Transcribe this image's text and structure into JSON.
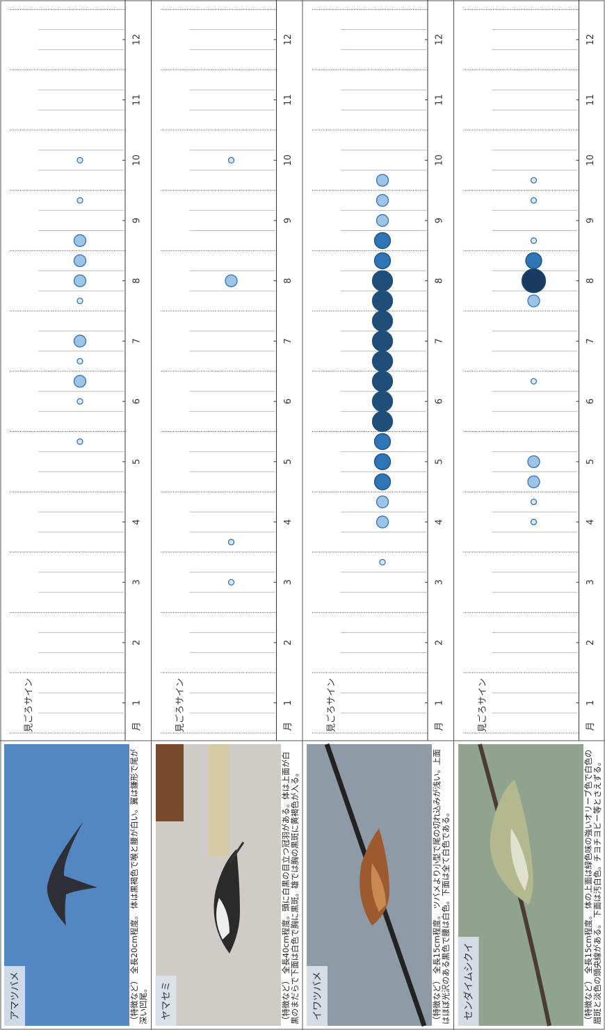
{
  "y_label": "見ごろサイン",
  "x_label": "月",
  "months": [
    1,
    2,
    3,
    4,
    5,
    6,
    7,
    8,
    9,
    10,
    11,
    12
  ],
  "level_colors": [
    "#b4cdea",
    "#9dc3e6",
    "#2e75b6",
    "#1f4e79",
    "#1a3b5f"
  ],
  "chart_data": [
    {
      "type": "bubble",
      "title": "アマツバメ",
      "description": "（特徴など） 全長20cm程度。 体は黒褐色で喉と腰が白い。翼は鎌形で尾が深い凹尾。",
      "values": [
        null,
        null,
        null,
        null,
        null,
        null,
        null,
        null,
        null,
        null,
        null,
        null,
        null,
        null,
        1,
        null,
        1,
        2,
        1,
        2,
        null,
        1,
        2,
        2,
        2,
        null,
        1,
        null,
        1,
        null,
        null,
        null,
        null,
        null,
        null,
        null
      ]
    },
    {
      "type": "bubble",
      "title": "ヤマセミ",
      "description": "（特徴など） 全長40cm程度。頭に白黒の目立つ冠羽がある。体は上面が白黒のまだらで下面は白色で胸に黒斑。雄では胸の黒斑に黄褐色が入る。",
      "values": [
        null,
        null,
        null,
        null,
        null,
        null,
        null,
        1,
        null,
        1,
        null,
        null,
        null,
        null,
        null,
        null,
        null,
        null,
        null,
        null,
        null,
        null,
        2,
        null,
        null,
        null,
        null,
        null,
        1,
        null,
        null,
        null,
        null,
        null,
        null,
        null
      ]
    },
    {
      "type": "bubble",
      "title": "イワツバメ",
      "description": "（特徴など） 全長15cm程度。 ツバメより小型で尾の切れ込みが浅い。上面はほぼ光沢のある黒色で腰は白色。下面は全て白色である。",
      "values": [
        null,
        null,
        null,
        null,
        null,
        null,
        null,
        null,
        1,
        null,
        2,
        2,
        3,
        3,
        3,
        4,
        4,
        4,
        4,
        4,
        4,
        4,
        4,
        3,
        3,
        2,
        2,
        2,
        null,
        null,
        null,
        null,
        null,
        null,
        null,
        null
      ]
    },
    {
      "type": "bubble",
      "title": "センダイムシクイ",
      "description": "（特徴など） 全長15cm程度。 体の上面は緑色味の強いオリーブ色で白色の眉斑と淡色の頭央線がある。 下面は汚白色。チヨチヨビー等とさえずる。",
      "values": [
        null,
        null,
        null,
        null,
        null,
        null,
        null,
        null,
        null,
        null,
        1,
        1,
        2,
        2,
        null,
        null,
        null,
        1,
        null,
        null,
        null,
        2,
        5,
        3,
        1,
        null,
        1,
        1,
        null,
        null,
        null,
        null,
        null,
        null,
        null,
        null
      ]
    }
  ]
}
